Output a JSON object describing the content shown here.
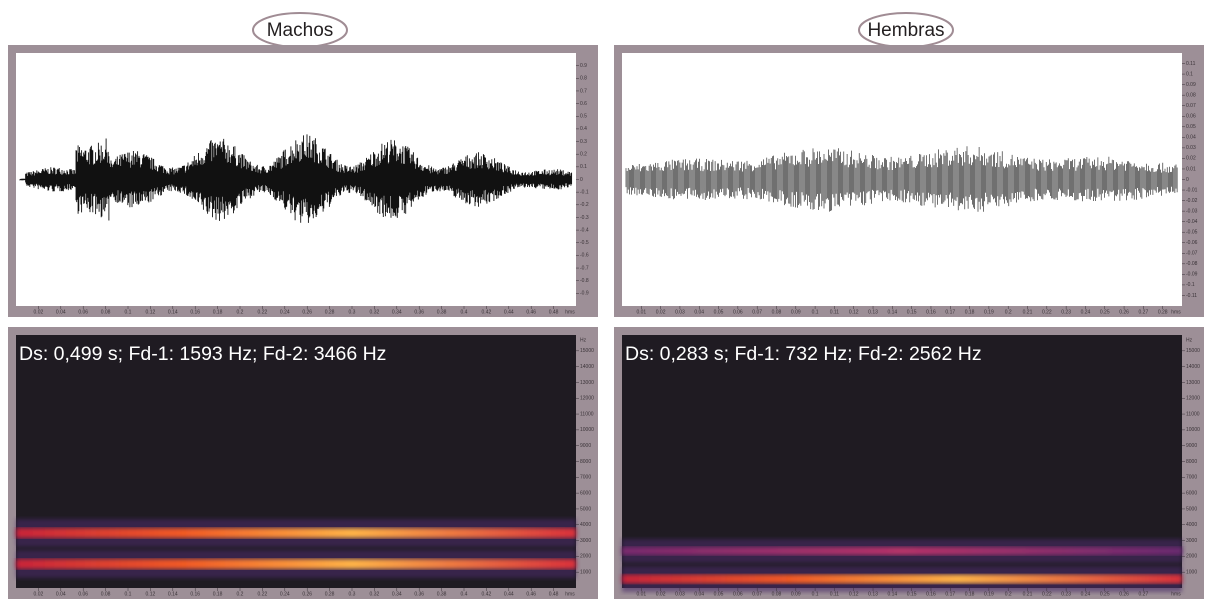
{
  "panels": [
    {
      "label": "Machos",
      "waveform": {
        "ylim": [
          -1,
          1
        ],
        "yticks": [
          0.9,
          0.8,
          0.7,
          0.6,
          0.5,
          0.4,
          0.3,
          0.2,
          0.1,
          0,
          -0.1,
          -0.2,
          -0.3,
          -0.4,
          -0.5,
          -0.6,
          -0.7,
          -0.8,
          -0.9
        ],
        "xlim": [
          0,
          0.5
        ],
        "xticks": [
          0.02,
          0.04,
          0.06,
          0.08,
          0.1,
          0.12,
          0.14,
          0.16,
          0.18,
          0.2,
          0.22,
          0.24,
          0.26,
          0.28,
          0.3,
          0.32,
          0.34,
          0.36,
          0.38,
          0.4,
          0.42,
          0.44,
          0.46,
          0.48
        ],
        "x_unit": "hms"
      },
      "spectrogram": {
        "annotation": "Ds: 0,499 s; Fd-1: 1593 Hz; Fd-2: 3466 Hz",
        "y_unit": "Hz",
        "ylim": [
          0,
          16000
        ],
        "yticks": [
          15000,
          14000,
          13000,
          12000,
          11000,
          10000,
          9000,
          8000,
          7000,
          6000,
          5000,
          4000,
          3000,
          2000,
          1000
        ],
        "xlim": [
          0,
          0.5
        ],
        "xticks": [
          0.02,
          0.04,
          0.06,
          0.08,
          0.1,
          0.12,
          0.14,
          0.16,
          0.18,
          0.2,
          0.22,
          0.24,
          0.26,
          0.28,
          0.3,
          0.32,
          0.34,
          0.36,
          0.38,
          0.4,
          0.42,
          0.44,
          0.46,
          0.48
        ],
        "x_unit": "hms"
      }
    },
    {
      "label": "Hembras",
      "waveform": {
        "ylim": [
          -0.12,
          0.12
        ],
        "yticks": [
          0.11,
          0.1,
          0.09,
          0.08,
          0.07,
          0.06,
          0.05,
          0.04,
          0.03,
          0.02,
          0.01,
          0,
          -0.01,
          -0.02,
          -0.03,
          -0.04,
          -0.05,
          -0.06,
          -0.07,
          -0.08,
          -0.09,
          -0.1,
          -0.11
        ],
        "xlim": [
          0,
          0.29
        ],
        "xticks": [
          0.01,
          0.02,
          0.03,
          0.04,
          0.05,
          0.06,
          0.07,
          0.08,
          0.09,
          0.1,
          0.11,
          0.12,
          0.13,
          0.14,
          0.15,
          0.16,
          0.17,
          0.18,
          0.19,
          0.2,
          0.21,
          0.22,
          0.23,
          0.24,
          0.25,
          0.26,
          0.27,
          0.28
        ],
        "x_unit": "hms"
      },
      "spectrogram": {
        "annotation": "Ds: 0,283 s; Fd-1: 732 Hz; Fd-2: 2562 Hz",
        "y_unit": "Hz",
        "ylim": [
          0,
          16000
        ],
        "yticks": [
          15000,
          14000,
          13000,
          12000,
          11000,
          10000,
          9000,
          8000,
          7000,
          6000,
          5000,
          4000,
          3000,
          2000,
          1000
        ],
        "xlim": [
          0,
          0.29
        ],
        "xticks": [
          0.01,
          0.02,
          0.03,
          0.04,
          0.05,
          0.06,
          0.07,
          0.08,
          0.09,
          0.1,
          0.11,
          0.12,
          0.13,
          0.14,
          0.15,
          0.16,
          0.17,
          0.18,
          0.19,
          0.2,
          0.21,
          0.22,
          0.23,
          0.24,
          0.25,
          0.26,
          0.27
        ],
        "x_unit": "hms"
      }
    }
  ]
}
